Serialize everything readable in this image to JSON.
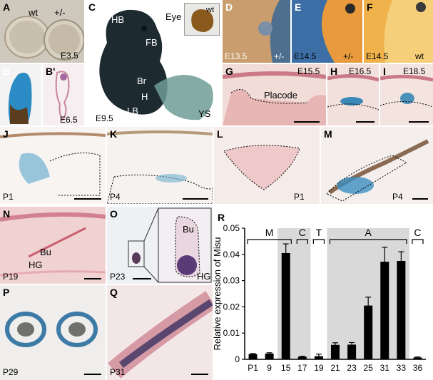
{
  "panels": {
    "A": {
      "label": "A",
      "genotypes": [
        "wt",
        "+/-"
      ],
      "stage": "E3.5"
    },
    "B": {
      "label": "B"
    },
    "B2": {
      "label": "B'",
      "stage": "E6.5"
    },
    "C": {
      "label": "C",
      "stage": "E9.5",
      "inset": "wt",
      "annotations": {
        "hb": "HB",
        "eye": "Eye",
        "fb": "FB",
        "br": "Br",
        "h": "H",
        "lb": "LB",
        "ys": "YS"
      }
    },
    "D": {
      "label": "D",
      "stage": "E13.5",
      "genotype": "+/-"
    },
    "E": {
      "label": "E",
      "stage": "E14.5",
      "genotype": "+/-"
    },
    "F": {
      "label": "F",
      "stage": "E14.5",
      "genotype": "wt"
    },
    "G": {
      "label": "G",
      "stage": "E15.5",
      "annotation": "Placode"
    },
    "H": {
      "label": "H",
      "stage": "E16.5"
    },
    "I": {
      "label": "I",
      "stage": "E18.5"
    },
    "J": {
      "label": "J",
      "stage": "P1"
    },
    "K": {
      "label": "K",
      "stage": "P4"
    },
    "L": {
      "label": "L",
      "stage": "P1"
    },
    "M": {
      "label": "M",
      "stage": "P4"
    },
    "N": {
      "label": "N",
      "stage": "P19",
      "annotations": {
        "bu": "Bu",
        "hg": "HG"
      }
    },
    "O": {
      "label": "O",
      "stage": "P23",
      "annotations": {
        "bu": "Bu",
        "hg": "HG"
      }
    },
    "P": {
      "label": "P",
      "stage": "P29"
    },
    "Q": {
      "label": "Q",
      "stage": "P31"
    },
    "R": {
      "label": "R"
    }
  },
  "colors": {
    "lacz_blue": "#2d8fc0",
    "tissue_pink": "#e9a8ae",
    "embryo_dark": "#1c2a30",
    "bar": "#000000",
    "shade": "#d9d9d9"
  },
  "chart_data": {
    "type": "bar",
    "ylabel": "Relative expression of Misu",
    "xlabel": "",
    "categories": [
      "P1",
      "9",
      "15",
      "17",
      "19",
      "21",
      "23",
      "25",
      "31",
      "33",
      "36"
    ],
    "values": [
      0.002,
      0.0022,
      0.0405,
      0.001,
      0.0012,
      0.0055,
      0.0056,
      0.0205,
      0.0372,
      0.0375,
      0.0007
    ],
    "errors": [
      0.0002,
      0.0003,
      0.0035,
      0.0002,
      0.0008,
      0.0008,
      0.0008,
      0.0032,
      0.0055,
      0.0035,
      0.0002
    ],
    "ylim": [
      0,
      0.05
    ],
    "yticks": [
      0,
      0.01,
      0.02,
      0.03,
      0.04,
      0.05
    ],
    "ytick_labels": [
      "0",
      "0.01",
      "0.02",
      "0.03",
      "0.04",
      "0.05"
    ],
    "phases": [
      {
        "label": "M",
        "from": 0,
        "to": 2,
        "shaded": false
      },
      {
        "label": "C",
        "from": 3,
        "to": 3,
        "shaded": true
      },
      {
        "label": "T",
        "from": 4,
        "to": 4,
        "shaded": false
      },
      {
        "label": "A",
        "from": 5,
        "to": 9,
        "shaded": true
      },
      {
        "label": "C",
        "from": 10,
        "to": 10,
        "shaded": false
      }
    ],
    "shaded_ranges": [
      [
        2,
        3
      ],
      [
        5,
        9
      ]
    ]
  }
}
